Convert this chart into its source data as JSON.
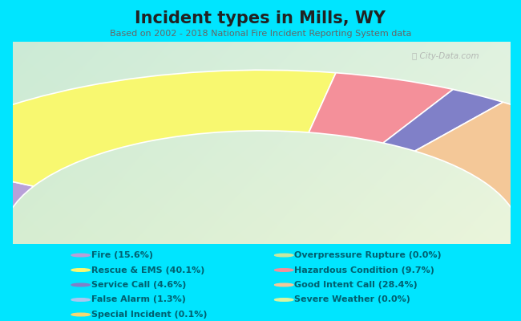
{
  "title": "Incident types in Mills, WY",
  "subtitle": "Based on 2002 - 2018 National Fire Incident Reporting System data",
  "background_outer": "#00e5ff",
  "watermark": "City-Data.com",
  "wedge_order": [
    "Fire",
    "Rescue & EMS",
    "Hazardous Condition",
    "Service Call",
    "Good Intent Call",
    "False Alarm",
    "Special Incident",
    "Overpressure Rupture",
    "Severe Weather"
  ],
  "wedge_values": [
    15.6,
    40.1,
    9.7,
    4.6,
    28.4,
    1.3,
    0.1,
    0.0,
    0.0
  ],
  "wedge_colors": [
    "#b8a0d8",
    "#f8f870",
    "#f4909a",
    "#8080c8",
    "#f4c898",
    "#a8c8f0",
    "#f8d870",
    "#c8e8a0",
    "#d8f4a0"
  ],
  "legend_labels": [
    "Fire (15.6%)",
    "Rescue & EMS (40.1%)",
    "Service Call (4.6%)",
    "False Alarm (1.3%)",
    "Special Incident (0.1%)",
    "Overpressure Rupture (0.0%)",
    "Hazardous Condition (9.7%)",
    "Good Intent Call (28.4%)",
    "Severe Weather (0.0%)"
  ],
  "legend_colors": [
    "#b8a0d8",
    "#f8f870",
    "#8080c8",
    "#a8c8f0",
    "#f8d870",
    "#c8e8a0",
    "#f4909a",
    "#f4c898",
    "#d8f4a0"
  ],
  "bg_grad_tl": [
    0.8,
    0.92,
    0.84
  ],
  "bg_grad_tr": [
    0.88,
    0.95,
    0.88
  ],
  "bg_grad_bl": [
    0.84,
    0.93,
    0.82
  ],
  "bg_grad_br": [
    0.92,
    0.96,
    0.86
  ]
}
